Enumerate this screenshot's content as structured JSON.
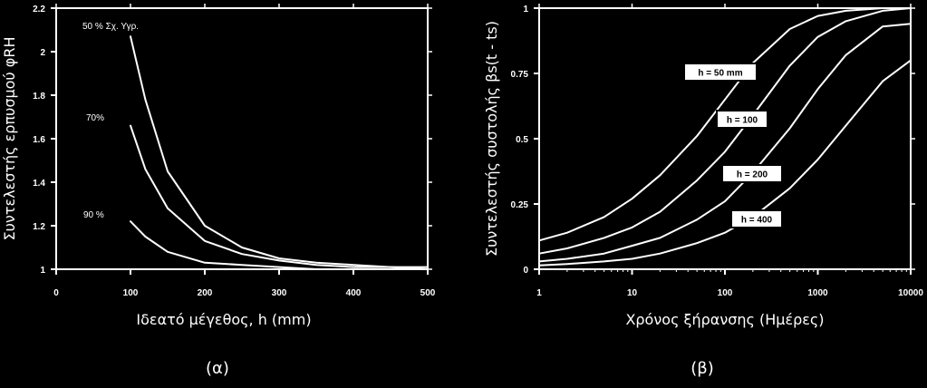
{
  "chart_data": [
    {
      "panel_label": "(α)",
      "type": "line",
      "xlabel": "Ιδεατό μέγεθος, h (mm)",
      "ylabel": "Συντελεστής ερπυσμού φRH",
      "xlim": [
        0,
        500
      ],
      "ylim": [
        1,
        2.2
      ],
      "xticks": [
        0,
        100,
        200,
        300,
        400,
        500
      ],
      "xtick_labels": [
        "0",
        "100",
        "200",
        "300",
        "400",
        "500"
      ],
      "yticks": [
        1,
        1.2,
        1.4,
        1.6,
        1.8,
        2,
        2.2
      ],
      "ytick_labels": [
        "1",
        "1.2",
        "1.4",
        "1.6",
        "1.8",
        "2",
        "2.2"
      ],
      "x": [
        100,
        120,
        150,
        200,
        250,
        300,
        350,
        400,
        450,
        500
      ],
      "series": [
        {
          "name": "50 % Σχ. Υγρ.",
          "values": [
            2.07,
            1.78,
            1.45,
            1.2,
            1.1,
            1.05,
            1.03,
            1.02,
            1.01,
            1.01
          ]
        },
        {
          "name": "70%",
          "values": [
            1.66,
            1.46,
            1.28,
            1.13,
            1.07,
            1.04,
            1.02,
            1.01,
            1.01,
            1.0
          ]
        },
        {
          "name": "90 %",
          "values": [
            1.22,
            1.15,
            1.08,
            1.03,
            1.02,
            1.01,
            1.0,
            1.0,
            1.0,
            1.0
          ]
        }
      ]
    },
    {
      "panel_label": "(β)",
      "type": "line",
      "xscale": "log",
      "xlabel": "Χρόνος ξήρανσης (Ημέρες)",
      "ylabel": "Συντελεστής συστολής βs(t - ts)",
      "xlim": [
        1,
        10000
      ],
      "ylim": [
        0,
        1
      ],
      "xticks": [
        1,
        10,
        100,
        1000,
        10000
      ],
      "xtick_labels": [
        "1",
        "10",
        "100",
        "1000",
        "10000"
      ],
      "yticks": [
        0,
        0.25,
        0.5,
        0.75,
        1
      ],
      "ytick_labels": [
        "0",
        "0.25",
        "0.5",
        "0.75",
        "1"
      ],
      "x": [
        1,
        2,
        5,
        10,
        20,
        50,
        100,
        200,
        500,
        1000,
        2000,
        5000,
        10000
      ],
      "series": [
        {
          "name": "h = 50 mm",
          "values": [
            0.11,
            0.14,
            0.2,
            0.27,
            0.36,
            0.51,
            0.65,
            0.79,
            0.92,
            0.97,
            0.99,
            1.0,
            1.0
          ]
        },
        {
          "name": "h = 100",
          "values": [
            0.06,
            0.08,
            0.12,
            0.16,
            0.22,
            0.34,
            0.45,
            0.59,
            0.78,
            0.89,
            0.95,
            0.99,
            1.0
          ]
        },
        {
          "name": "h = 200",
          "values": [
            0.03,
            0.04,
            0.06,
            0.09,
            0.12,
            0.19,
            0.26,
            0.37,
            0.54,
            0.69,
            0.82,
            0.93,
            0.94
          ]
        },
        {
          "name": "h = 400",
          "values": [
            0.015,
            0.02,
            0.03,
            0.04,
            0.06,
            0.1,
            0.14,
            0.2,
            0.31,
            0.42,
            0.55,
            0.72,
            0.8
          ]
        }
      ]
    }
  ]
}
